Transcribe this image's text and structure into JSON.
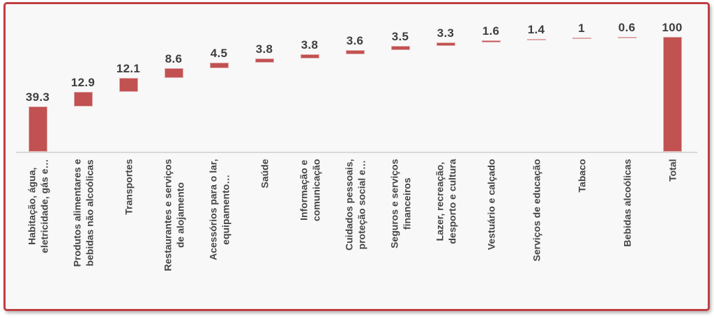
{
  "chart_data": {
    "type": "bar",
    "subtype": "waterfall",
    "title": "",
    "xlabel": "",
    "ylabel": "",
    "ylim": [
      0,
      100
    ],
    "grid": false,
    "legend": null,
    "orientation": "vertical",
    "categories": [
      "Habitação, água,\neletricidade, gás e…",
      "Produtos alimentares e\nbebidas não alcoólicas",
      "Transportes",
      "Restaurantes e serviços\nde alojamento",
      "Acessórios para o lar,\nequipamento…",
      "Saúde",
      "Informação e\ncomunicação",
      "Cuidados pessoais,\nproteção social e…",
      "Seguros e serviços\nfinanceiros",
      "Lazer, recreação,\ndesporto e cultura",
      "Vestuário e calçado",
      "Serviços de educação",
      "Tabaco",
      "Bebidas alcoólicas",
      "Total"
    ],
    "values": [
      39.3,
      12.9,
      12.1,
      8.6,
      4.5,
      3.8,
      3.8,
      3.6,
      3.5,
      3.3,
      1.6,
      1.4,
      1,
      0.6,
      100
    ],
    "value_labels": [
      "39.3",
      "12.9",
      "12.1",
      "8.6",
      "4.5",
      "3.8",
      "3.8",
      "3.6",
      "3.5",
      "3.3",
      "1.6",
      "1.4",
      "1",
      "0.6",
      "100"
    ],
    "total_index": 14,
    "bar_color": "#c25151",
    "bar_edge_color": "#e0a9a8",
    "data_label_color": "#3e3e3e",
    "axis_line_color": "#d8d8d8",
    "frame_border_color": "#c03e41",
    "plot_background": "#f8f8f9"
  }
}
